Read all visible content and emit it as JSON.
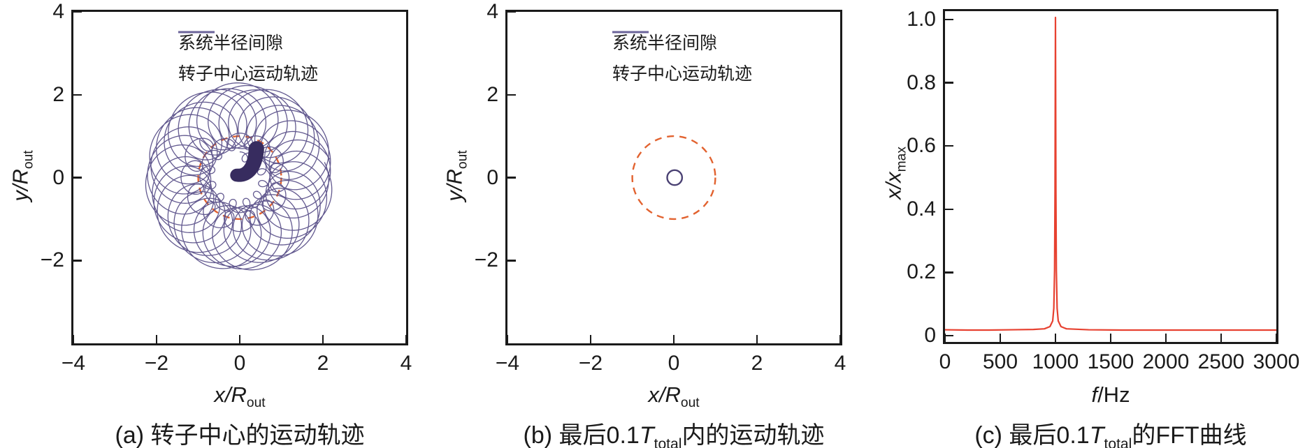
{
  "figure": {
    "colors": {
      "axis": "#1a1a1a",
      "clearance_dashed": "#e2622f",
      "trajectory": "#5a5089",
      "trajectory_dense": "#372c5f",
      "final_orbit": "#4a4173",
      "fft_line": "#e74130"
    }
  },
  "panels": {
    "a": {
      "caption_pre": "(a) 转子中心的运动轨迹",
      "caption_T": "",
      "caption_sub": "",
      "caption_post": "",
      "xlabel_main": "x/R",
      "xlabel_sub": "out",
      "xlabel_post": "",
      "ylabel_main": "y/R",
      "ylabel_sub": "out",
      "x_tick_labels": [
        "−4",
        "−2",
        "0",
        "2",
        "4"
      ],
      "y_tick_labels": [
        "4",
        "2",
        "0",
        "−2"
      ],
      "legend": {
        "clearance": "系统半径间隙",
        "trajectory": "转子中心运动轨迹"
      }
    },
    "b": {
      "caption_pre": "(b) 最后0.1",
      "caption_T": "T",
      "caption_sub": "total",
      "caption_post": "内的运动轨迹",
      "xlabel_main": "x/R",
      "xlabel_sub": "out",
      "xlabel_post": "",
      "ylabel_main": "y/R",
      "ylabel_sub": "out",
      "x_tick_labels": [
        "−4",
        "−2",
        "0",
        "2",
        "4"
      ],
      "y_tick_labels": [
        "4",
        "2",
        "0",
        "−2"
      ],
      "legend": {
        "clearance": "系统半径间隙",
        "trajectory": "转子中心运动轨迹"
      }
    },
    "c": {
      "caption_pre": "(c) 最后0.1",
      "caption_T": "T",
      "caption_sub": "total",
      "caption_post": "的FFT曲线",
      "xlabel_main": "f",
      "xlabel_sub": "",
      "xlabel_post": "/Hz",
      "ylabel_main": "x/x",
      "ylabel_sub": "max",
      "x_tick_labels": [
        "0",
        "500",
        "1000",
        "1500",
        "2000",
        "2500",
        "3000"
      ],
      "y_tick_labels": [
        "1.0",
        "0.8",
        "0.6",
        "0.4",
        "0.2",
        "0"
      ]
    }
  },
  "chart_data": [
    {
      "panel": "a",
      "type": "line",
      "title": "转子中心的运动轨迹",
      "xlabel": "x/R_out",
      "ylabel": "y/R_out",
      "xlim": [
        -4,
        4
      ],
      "ylim": [
        -4,
        4
      ],
      "x_ticks": [
        -4,
        -2,
        0,
        2,
        4
      ],
      "y_ticks": [
        4,
        2,
        0,
        -2
      ],
      "legend_position": "top-right-inside",
      "series": [
        {
          "name": "系统半径间隙",
          "style": "dashed",
          "color": "#e2622f",
          "shape": "circle",
          "center": [
            0,
            0
          ],
          "radius": 1
        },
        {
          "name": "转子中心运动轨迹",
          "style": "solid",
          "color": "#5a5089",
          "shape": "decaying_whirl_trajectory",
          "model": {
            "star": {
              "carrier_radius": 1.52,
              "epicycle_radius": 0.78,
              "lobes_per_turn": 12.33,
              "turns": 3,
              "phase": 0.6,
              "outer_radius": 2.3,
              "decay": 0.07
            },
            "loop_chain": {
              "start_radius": 1.22,
              "end_radius": 0.5,
              "turns": 1.9,
              "loops_per_turn": 13,
              "loop_radius_start": 0.26,
              "loop_radius_end": 0.12,
              "start_angle": 2.2
            },
            "terminal_blob": {
              "color": "#372c5f",
              "center_path": [
                [
                  0.4,
                  0.7
                ],
                [
                  0.38,
                  0.25
                ],
                [
                  0.18,
                  0.02
                ],
                [
                  -0.08,
                  0.06
                ]
              ],
              "orbit_radius_start": 0.165,
              "orbit_radius_end": 0.135,
              "cycles": 56
            }
          }
        }
      ]
    },
    {
      "panel": "b",
      "type": "line",
      "title": "最后0.1T_total内的运动轨迹",
      "xlabel": "x/R_out",
      "ylabel": "y/R_out",
      "xlim": [
        -4,
        4
      ],
      "ylim": [
        -4,
        4
      ],
      "x_ticks": [
        -4,
        -2,
        0,
        2,
        4
      ],
      "y_ticks": [
        4,
        2,
        0,
        -2
      ],
      "legend_position": "top-right-inside",
      "series": [
        {
          "name": "系统半径间隙",
          "style": "dashed",
          "color": "#e2622f",
          "shape": "circle",
          "center": [
            0,
            0
          ],
          "radius": 1
        },
        {
          "name": "转子中心运动轨迹",
          "style": "solid",
          "color": "#4a4173",
          "shape": "circle",
          "center": [
            0.02,
            0
          ],
          "radius": 0.18
        }
      ]
    },
    {
      "panel": "c",
      "type": "line",
      "title": "最后0.1T_total的FFT曲线",
      "xlabel": "f/Hz",
      "ylabel": "x/x_max",
      "xlim": [
        0,
        3000
      ],
      "ylim": [
        0,
        1.0
      ],
      "x_ticks": [
        0,
        500,
        1000,
        1500,
        2000,
        2500,
        3000
      ],
      "y_ticks": [
        1.0,
        0.8,
        0.6,
        0.4,
        0.2,
        0
      ],
      "peak": {
        "f_hz": 1000,
        "value": 1.0
      },
      "series": [
        {
          "name": "FFT",
          "style": "solid",
          "color": "#e74130",
          "points": [
            [
              0,
              0.012
            ],
            [
              200,
              0.011
            ],
            [
              400,
              0.011
            ],
            [
              600,
              0.012
            ],
            [
              800,
              0.013
            ],
            [
              900,
              0.015
            ],
            [
              950,
              0.022
            ],
            [
              975,
              0.04
            ],
            [
              985,
              0.08
            ],
            [
              992,
              0.2
            ],
            [
              996,
              0.45
            ],
            [
              1000,
              1.0
            ],
            [
              1004,
              0.45
            ],
            [
              1008,
              0.2
            ],
            [
              1015,
              0.08
            ],
            [
              1025,
              0.04
            ],
            [
              1050,
              0.022
            ],
            [
              1100,
              0.015
            ],
            [
              1300,
              0.012
            ],
            [
              1600,
              0.011
            ],
            [
              2000,
              0.011
            ],
            [
              2500,
              0.011
            ],
            [
              3000,
              0.011
            ]
          ]
        }
      ]
    }
  ]
}
